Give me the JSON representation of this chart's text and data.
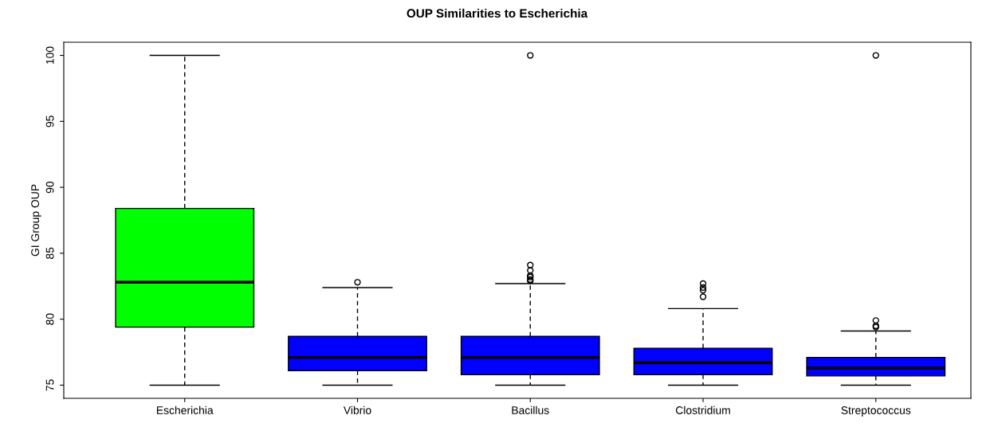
{
  "chart_data": {
    "type": "box",
    "title": "OUP Similarities to Escherichia",
    "ylabel": "GI Group OUP",
    "categories": [
      "Escherichia",
      "Vibrio",
      "Bacillus",
      "Clostridium",
      "Streptococcus"
    ],
    "colors": [
      "#00ff00",
      "#0000ff",
      "#0000ff",
      "#0000ff",
      "#0000ff"
    ],
    "boxes": [
      {
        "low": 75,
        "q1": 79.4,
        "median": 82.8,
        "q3": 88.4,
        "high": 100
      },
      {
        "low": 75,
        "q1": 76.1,
        "median": 77.1,
        "q3": 78.7,
        "high": 82.4,
        "outliers": [
          82.8
        ]
      },
      {
        "low": 75,
        "q1": 75.8,
        "median": 77.1,
        "q3": 78.7,
        "high": 82.7,
        "outliers": [
          100,
          84.1,
          83.7,
          83.3,
          83.2,
          83.0,
          82.9
        ]
      },
      {
        "low": 75,
        "q1": 75.8,
        "median": 76.7,
        "q3": 77.8,
        "high": 80.8,
        "outliers": [
          81.7,
          82.2,
          82.4,
          82.7
        ]
      },
      {
        "low": 75,
        "q1": 75.7,
        "median": 76.3,
        "q3": 77.1,
        "high": 79.1,
        "outliers": [
          100,
          79.9,
          79.5,
          79.4
        ]
      }
    ],
    "ylim": [
      74,
      101
    ],
    "yticks": [
      75,
      80,
      85,
      90,
      95,
      100
    ],
    "grid": false
  }
}
